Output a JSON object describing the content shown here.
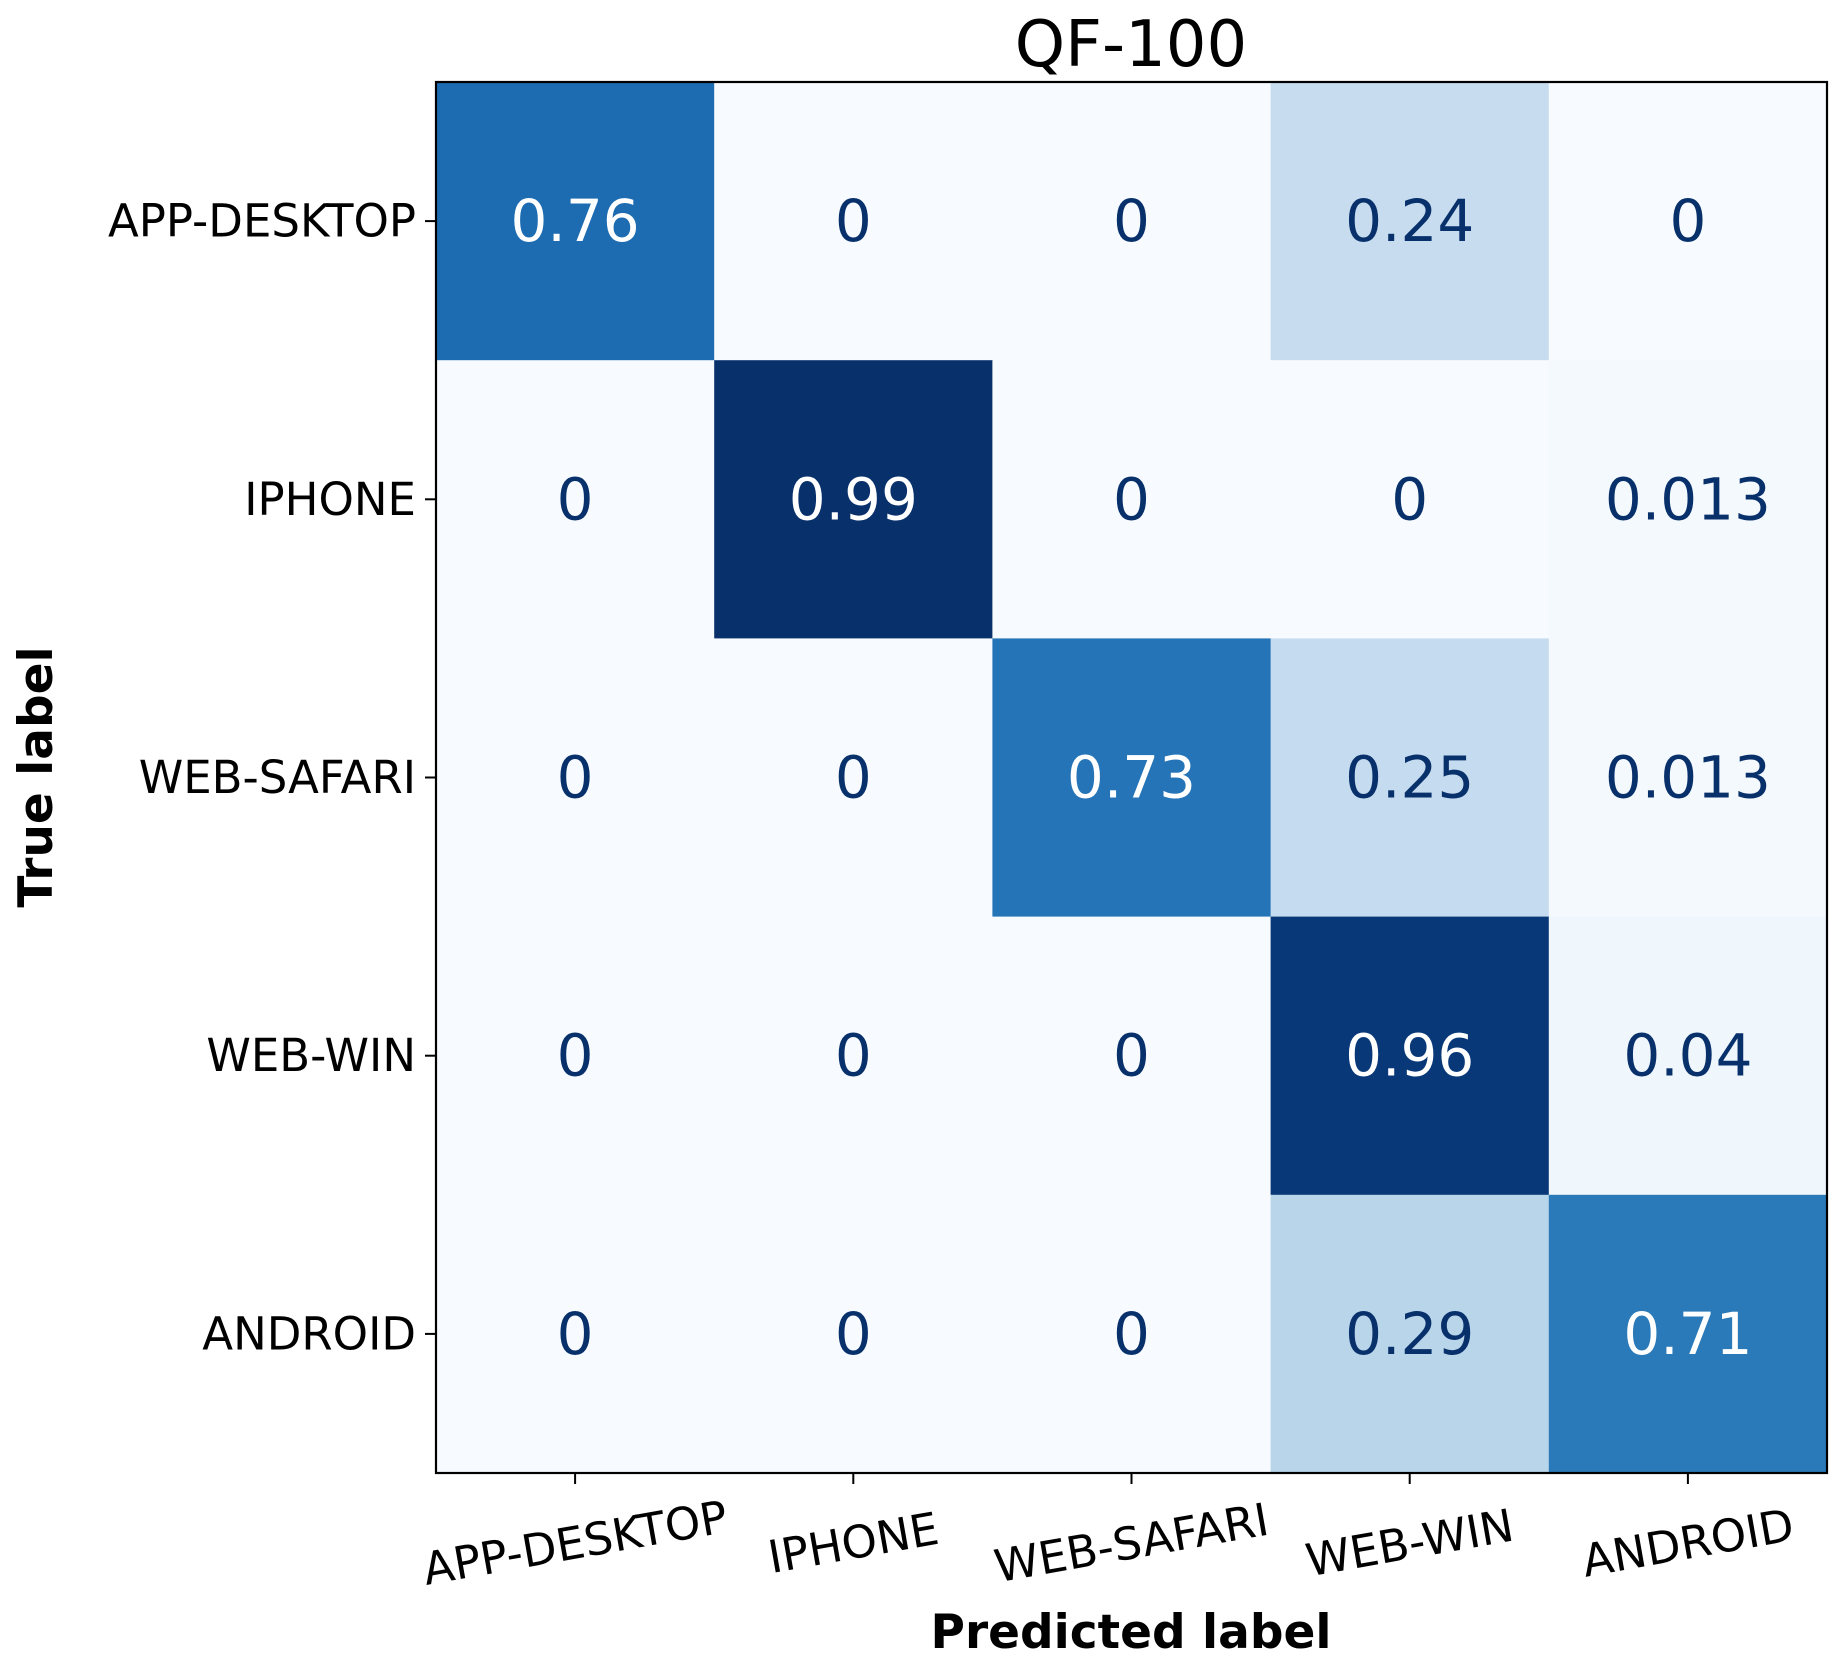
{
  "chart_data": {
    "type": "heatmap",
    "title": "QF-100",
    "xlabel": "Predicted label",
    "ylabel": "True label",
    "x_categories": [
      "APP-DESKTOP",
      "IPHONE",
      "WEB-SAFARI",
      "WEB-WIN",
      "ANDROID"
    ],
    "y_categories": [
      "APP-DESKTOP",
      "IPHONE",
      "WEB-SAFARI",
      "WEB-WIN",
      "ANDROID"
    ],
    "values": [
      [
        0.76,
        0,
        0,
        0.24,
        0
      ],
      [
        0,
        0.99,
        0,
        0,
        0.013
      ],
      [
        0,
        0,
        0.73,
        0.25,
        0.013
      ],
      [
        0,
        0,
        0,
        0.96,
        0.04
      ],
      [
        0,
        0,
        0,
        0.29,
        0.71
      ]
    ],
    "value_labels": [
      [
        "0.76",
        "0",
        "0",
        "0.24",
        "0"
      ],
      [
        "0",
        "0.99",
        "0",
        "0",
        "0.013"
      ],
      [
        "0",
        "0",
        "0.73",
        "0.25",
        "0.013"
      ],
      [
        "0",
        "0",
        "0",
        "0.96",
        "0.04"
      ],
      [
        "0",
        "0",
        "0",
        "0.29",
        "0.71"
      ]
    ],
    "colormap": "Blues",
    "vmin": 0,
    "vmax": 0.99,
    "colorbar": false,
    "grid": false
  }
}
